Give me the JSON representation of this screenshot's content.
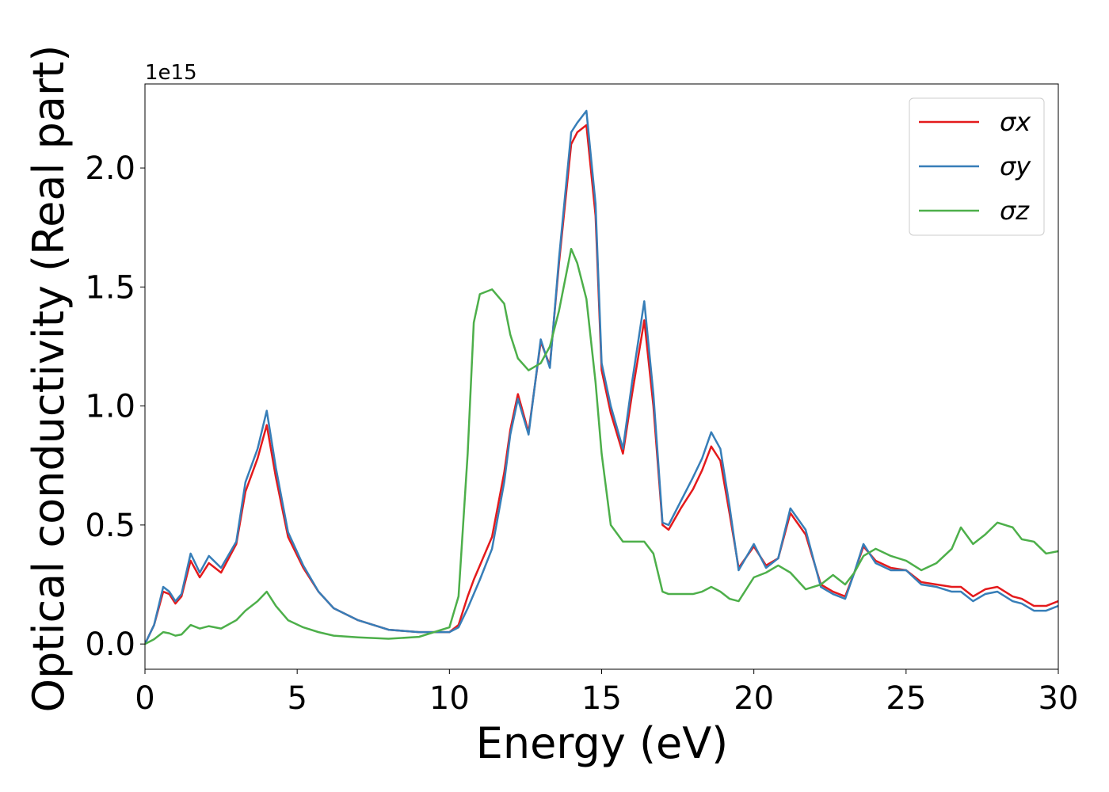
{
  "chart_data": {
    "type": "line",
    "x_label": "Energy (eV)",
    "y_label": "Optical conductivity (Real part)",
    "y_offset_label": "1e15",
    "x": [
      0,
      0.3,
      0.6,
      0.8,
      1.0,
      1.2,
      1.5,
      1.8,
      2.1,
      2.5,
      3.0,
      3.3,
      3.7,
      4.0,
      4.3,
      4.7,
      5.2,
      5.7,
      6.2,
      7.0,
      8.0,
      9.0,
      10.0,
      10.3,
      10.6,
      10.8,
      11.0,
      11.4,
      11.8,
      12.0,
      12.25,
      12.6,
      13.0,
      13.3,
      13.6,
      14.0,
      14.2,
      14.5,
      14.8,
      15.0,
      15.3,
      15.7,
      16.0,
      16.4,
      16.7,
      17.0,
      17.2,
      17.6,
      18.0,
      18.3,
      18.6,
      18.9,
      19.2,
      19.5,
      20.0,
      20.4,
      20.8,
      21.2,
      21.7,
      22.2,
      22.6,
      23.0,
      23.3,
      23.6,
      24.0,
      24.5,
      25.0,
      25.5,
      26.0,
      26.5,
      26.8,
      27.2,
      27.6,
      28.0,
      28.5,
      28.8,
      29.2,
      29.6,
      30.0
    ],
    "series": [
      {
        "name": "σx",
        "color": "#e41a1c",
        "values": [
          0,
          0.08,
          0.22,
          0.21,
          0.17,
          0.2,
          0.35,
          0.28,
          0.34,
          0.3,
          0.42,
          0.64,
          0.78,
          0.92,
          0.7,
          0.45,
          0.32,
          0.22,
          0.15,
          0.1,
          0.06,
          0.05,
          0.05,
          0.08,
          0.2,
          0.27,
          0.33,
          0.45,
          0.72,
          0.9,
          1.05,
          0.89,
          1.27,
          1.17,
          1.6,
          2.1,
          2.15,
          2.18,
          1.8,
          1.15,
          0.97,
          0.8,
          1.05,
          1.36,
          1.0,
          0.5,
          0.48,
          0.57,
          0.65,
          0.73,
          0.83,
          0.77,
          0.55,
          0.32,
          0.41,
          0.33,
          0.36,
          0.55,
          0.46,
          0.25,
          0.22,
          0.2,
          0.3,
          0.41,
          0.35,
          0.32,
          0.31,
          0.26,
          0.25,
          0.24,
          0.24,
          0.2,
          0.23,
          0.24,
          0.2,
          0.19,
          0.16,
          0.16,
          0.18
        ]
      },
      {
        "name": "σy",
        "color": "#377eb8",
        "values": [
          0,
          0.08,
          0.24,
          0.22,
          0.18,
          0.21,
          0.38,
          0.3,
          0.37,
          0.32,
          0.43,
          0.68,
          0.82,
          0.98,
          0.74,
          0.47,
          0.33,
          0.22,
          0.15,
          0.1,
          0.06,
          0.05,
          0.05,
          0.07,
          0.15,
          0.21,
          0.27,
          0.4,
          0.68,
          0.88,
          1.03,
          0.88,
          1.28,
          1.16,
          1.62,
          2.15,
          2.19,
          2.24,
          1.85,
          1.18,
          1.0,
          0.82,
          1.1,
          1.44,
          1.05,
          0.51,
          0.5,
          0.6,
          0.7,
          0.78,
          0.89,
          0.82,
          0.58,
          0.31,
          0.42,
          0.32,
          0.36,
          0.57,
          0.48,
          0.24,
          0.21,
          0.19,
          0.3,
          0.42,
          0.34,
          0.31,
          0.31,
          0.25,
          0.24,
          0.22,
          0.22,
          0.18,
          0.21,
          0.22,
          0.18,
          0.17,
          0.14,
          0.14,
          0.16
        ]
      },
      {
        "name": "σz",
        "color": "#4daf4a",
        "values": [
          0,
          0.02,
          0.05,
          0.045,
          0.035,
          0.04,
          0.08,
          0.065,
          0.075,
          0.065,
          0.1,
          0.14,
          0.18,
          0.22,
          0.16,
          0.1,
          0.07,
          0.05,
          0.035,
          0.028,
          0.022,
          0.03,
          0.07,
          0.2,
          0.8,
          1.35,
          1.47,
          1.49,
          1.43,
          1.3,
          1.2,
          1.15,
          1.18,
          1.25,
          1.4,
          1.66,
          1.6,
          1.45,
          1.1,
          0.8,
          0.5,
          0.43,
          0.43,
          0.43,
          0.38,
          0.22,
          0.21,
          0.21,
          0.21,
          0.22,
          0.24,
          0.22,
          0.19,
          0.18,
          0.28,
          0.3,
          0.33,
          0.3,
          0.23,
          0.25,
          0.29,
          0.25,
          0.3,
          0.37,
          0.4,
          0.37,
          0.35,
          0.31,
          0.34,
          0.4,
          0.49,
          0.42,
          0.46,
          0.51,
          0.49,
          0.44,
          0.43,
          0.38,
          0.39
        ]
      }
    ],
    "xlim": [
      0,
      30
    ],
    "xticks": [
      0,
      5,
      10,
      15,
      20,
      25,
      30
    ],
    "ylim": [
      -0.106,
      2.353
    ],
    "yticks": [
      {
        "value": 0,
        "label": "0.0"
      },
      0.5,
      {
        "value": 1,
        "label": "1.0"
      },
      1.5,
      {
        "value": 2,
        "label": "2.0"
      }
    ],
    "legend": "upper right",
    "grid": false
  }
}
